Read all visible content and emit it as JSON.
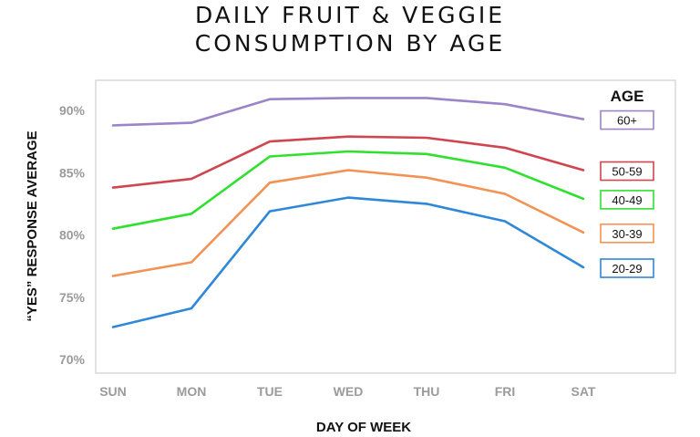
{
  "chart_data": {
    "type": "line",
    "title_lines": [
      "DAILY FRUIT & VEGGIE",
      "CONSUMPTION BY AGE"
    ],
    "xlabel": "DAY OF WEEK",
    "ylabel": "“YES” RESPONSE AVERAGE",
    "categories": [
      "SUN",
      "MON",
      "TUE",
      "WED",
      "THU",
      "FRI",
      "SAT"
    ],
    "ylim": [
      69,
      92.5
    ],
    "yticks": [
      70,
      75,
      80,
      85,
      90
    ],
    "ytick_labels": [
      "70%",
      "75%",
      "80%",
      "85%",
      "90%"
    ],
    "legend_title": "AGE",
    "grid": false,
    "series": [
      {
        "name": "60+",
        "color": "#9b84c8",
        "values": [
          88.8,
          89.0,
          90.9,
          91.0,
          91.0,
          90.5,
          89.3
        ]
      },
      {
        "name": "50-59",
        "color": "#cf4650",
        "values": [
          83.8,
          84.5,
          87.5,
          87.9,
          87.8,
          87.0,
          85.2
        ]
      },
      {
        "name": "40-49",
        "color": "#2fe02f",
        "values": [
          80.5,
          81.7,
          86.3,
          86.7,
          86.5,
          85.4,
          82.9
        ]
      },
      {
        "name": "30-39",
        "color": "#f29255",
        "values": [
          76.7,
          77.8,
          84.2,
          85.2,
          84.6,
          83.3,
          80.2
        ]
      },
      {
        "name": "20-29",
        "color": "#2f87d8",
        "values": [
          72.6,
          74.1,
          81.9,
          83.0,
          82.5,
          81.1,
          77.4
        ]
      }
    ]
  }
}
